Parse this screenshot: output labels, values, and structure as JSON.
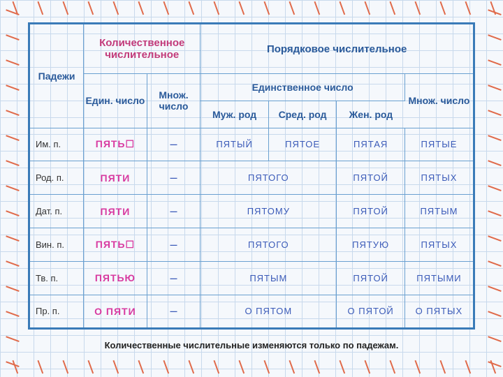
{
  "headers": {
    "cases": "Падежи",
    "quantitative": "Количественное числительное",
    "ordinal": "Порядковое числительное",
    "sing": "Един. число",
    "plur": "Множ. число",
    "sing_full": "Единственное число",
    "masc": "Муж. род",
    "neut": "Сред. род",
    "fem": "Жен. род"
  },
  "cases": [
    "Им. п.",
    "Род. п.",
    "Дат. п.",
    "Вин. п.",
    "Тв. п.",
    "Пр. п."
  ],
  "quant_sing": [
    "ПЯТЬ☐",
    "ПЯТИ",
    "ПЯТИ",
    "ПЯТЬ☐",
    "ПЯТЬЮ",
    "О ПЯТИ"
  ],
  "quant_plur": [
    "–",
    "–",
    "–",
    "–",
    "–",
    "–"
  ],
  "ord_masc": [
    "ПЯТЫЙ",
    "ПЯТОГО",
    "ПЯТОМУ",
    "ПЯТОГО",
    "ПЯТЫМ",
    "О ПЯТОМ"
  ],
  "ord_neut": [
    "ПЯТОЕ",
    "",
    "",
    "",
    "",
    ""
  ],
  "ord_fem": [
    "ПЯТАЯ",
    "ПЯТОЙ",
    "ПЯТОЙ",
    "ПЯТУЮ",
    "ПЯТОЙ",
    "О ПЯТОЙ"
  ],
  "ord_plur": [
    "ПЯТЫЕ",
    "ПЯТЫХ",
    "ПЯТЫМ",
    "ПЯТЫХ",
    "ПЯТЫМИ",
    "О ПЯТЫХ"
  ],
  "merged_mn": {
    "1": "ПЯТОГО",
    "2": "ПЯТОМУ",
    "3": "ПЯТОГО",
    "4": "ПЯТЫМ",
    "5": "О ПЯТОМ"
  },
  "caption": "Количественные числительные изменяются  только по падежам.",
  "colors": {
    "grid": "#c8d9ec",
    "border": "#3a7bb8",
    "cell_border": "#6aa0d0",
    "hdr_pink": "#c23a7a",
    "hdr_blue": "#2a5a9a",
    "val_pink": "#d83aa0",
    "val_blue": "#3a5ab8",
    "stitch": "#e06a4a"
  }
}
